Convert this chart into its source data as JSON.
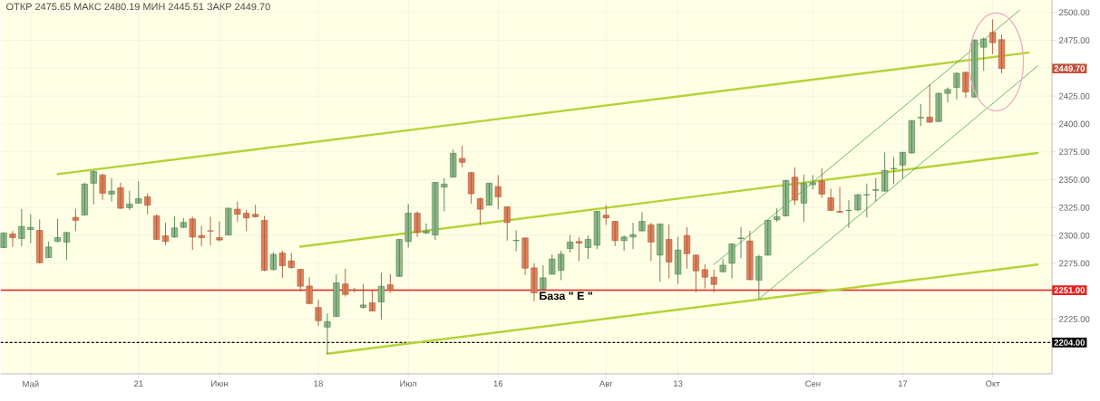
{
  "chart_data": {
    "type": "candlestick",
    "title": "ОТКР 2475.65   МАКС 2480.19   МИН 2445.51   ЗАКР 2449.70",
    "categories": [
      null,
      null,
      null,
      "Май",
      null,
      null,
      null,
      null,
      null,
      null,
      null,
      null,
      null,
      null,
      null,
      "21",
      null,
      null,
      null,
      null,
      null,
      null,
      null,
      null,
      "Июн",
      null,
      null,
      null,
      null,
      null,
      null,
      null,
      null,
      null,
      null,
      "18",
      null,
      null,
      null,
      null,
      null,
      null,
      null,
      null,
      null,
      "Июл",
      null,
      null,
      null,
      null,
      null,
      null,
      null,
      null,
      null,
      "16",
      null,
      null,
      null,
      null,
      null,
      null,
      null,
      null,
      null,
      null,
      null,
      "Авг",
      null,
      null,
      null,
      null,
      null,
      null,
      null,
      "13",
      null,
      null,
      null,
      null,
      null,
      null,
      null,
      null,
      null,
      null,
      null,
      null,
      null,
      null,
      "Сен",
      null,
      null,
      null,
      null,
      null,
      null,
      null,
      null,
      null,
      "17",
      null,
      null,
      null,
      null,
      null,
      null,
      null,
      null,
      null,
      "Окт",
      null,
      null,
      null,
      null,
      null,
      null
    ],
    "ohlc": [
      [
        2289.2,
        2303.0,
        2288.6,
        2302.2
      ],
      [
        2301.4,
        2304.0,
        2289.7,
        2298.1
      ],
      [
        2297.3,
        2323.9,
        2290.5,
        2308.1
      ],
      [
        2305.4,
        2319.0,
        2293.2,
        2307.3
      ],
      [
        2304.6,
        2314.4,
        2275.0,
        2275.6
      ],
      [
        2280.2,
        2294.6,
        2280.0,
        2289.7
      ],
      [
        2294.6,
        2314.9,
        2294.0,
        2298.1
      ],
      [
        2294.1,
        2303.0,
        2278.3,
        2302.7
      ],
      [
        2316.3,
        2323.9,
        2304.0,
        2313.6
      ],
      [
        2318.4,
        2347.4,
        2318.0,
        2346.1
      ],
      [
        2346.9,
        2358.3,
        2327.9,
        2357.5
      ],
      [
        2354.2,
        2355.5,
        2332.0,
        2337.9
      ],
      [
        2337.1,
        2351.5,
        2330.4,
        2339.8
      ],
      [
        2342.8,
        2347.4,
        2324.0,
        2324.4
      ],
      [
        2325.0,
        2340.1,
        2323.0,
        2328.2
      ],
      [
        2329.0,
        2348.8,
        2328.6,
        2333.1
      ],
      [
        2334.7,
        2337.9,
        2319.0,
        2327.1
      ],
      [
        2317.6,
        2319.0,
        2296.0,
        2296.5
      ],
      [
        2299.7,
        2311.4,
        2291.3,
        2294.6
      ],
      [
        2298.6,
        2317.0,
        2298.0,
        2306.8
      ],
      [
        2307.3,
        2315.7,
        2307.0,
        2311.7
      ],
      [
        2314.9,
        2317.0,
        2287.0,
        2298.6
      ],
      [
        2300.0,
        2308.7,
        2290.5,
        2298.1
      ],
      [
        2304.2,
        2316.8,
        2291.3,
        2304.0
      ],
      [
        2298.1,
        2312.7,
        2294.6,
        2296.0
      ],
      [
        2300.5,
        2325.0,
        2300.0,
        2324.4
      ],
      [
        2323.6,
        2330.4,
        2312.2,
        2319.0
      ],
      [
        2320.0,
        2323.0,
        2304.0,
        2315.7
      ],
      [
        2319.0,
        2327.6,
        2316.0,
        2316.8
      ],
      [
        2313.6,
        2317.6,
        2268.0,
        2268.8
      ],
      [
        2269.4,
        2285.1,
        2269.0,
        2283.0
      ],
      [
        2284.3,
        2286.4,
        2262.1,
        2272.9
      ],
      [
        2277.3,
        2284.3,
        2270.2,
        2271.3
      ],
      [
        2269.6,
        2270.0,
        2249.9,
        2254.5
      ],
      [
        2254.7,
        2262.6,
        2238.2,
        2239.0
      ],
      [
        2235.5,
        2242.3,
        2218.7,
        2223.6
      ],
      [
        2217.9,
        2230.1,
        2193.8,
        2222.8
      ],
      [
        2227.4,
        2265.3,
        2227.0,
        2257.5
      ],
      [
        2256.6,
        2270.2,
        2245.3,
        2247.2
      ],
      [
        2251.2,
        2253.0,
        2249.0,
        2251.0
      ],
      [
        2235.5,
        2256.6,
        2234.4,
        2237.7
      ],
      [
        2239.6,
        2251.2,
        2232.0,
        2232.3
      ],
      [
        2240.4,
        2266.7,
        2224.7,
        2254.5
      ],
      [
        2255.8,
        2265.3,
        2248.5,
        2250.7
      ],
      [
        2263.4,
        2297.0,
        2263.0,
        2296.5
      ],
      [
        2294.6,
        2328.2,
        2289.2,
        2320.0
      ],
      [
        2320.0,
        2321.7,
        2298.6,
        2302.7
      ],
      [
        2302.2,
        2310.8,
        2301.4,
        2304.1
      ],
      [
        2300.5,
        2348.0,
        2295.9,
        2347.7
      ],
      [
        2343.4,
        2351.5,
        2321.7,
        2346.1
      ],
      [
        2352.3,
        2377.2,
        2352.0,
        2373.7
      ],
      [
        2369.1,
        2380.5,
        2361.0,
        2365.6
      ],
      [
        2356.4,
        2357.0,
        2328.5,
        2337.4
      ],
      [
        2333.1,
        2334.0,
        2309.5,
        2323.6
      ],
      [
        2327.1,
        2347.0,
        2327.0,
        2346.9
      ],
      [
        2343.9,
        2354.2,
        2323.6,
        2334.7
      ],
      [
        2325.7,
        2326.0,
        2295.4,
        2311.7
      ],
      [
        2295.4,
        2304.6,
        2285.9,
        2295.6
      ],
      [
        2297.8,
        2298.0,
        2264.8,
        2270.7
      ],
      [
        2271.0,
        2275.1,
        2241.2,
        2248.5
      ],
      [
        2251.8,
        2273.4,
        2251.5,
        2262.1
      ],
      [
        2265.3,
        2282.9,
        2265.0,
        2278.9
      ],
      [
        2268.8,
        2286.4,
        2260.0,
        2283.2
      ],
      [
        2288.3,
        2300.5,
        2284.6,
        2294.1
      ],
      [
        2294.6,
        2298.6,
        2277.0,
        2293.2
      ],
      [
        2289.2,
        2300.0,
        2278.9,
        2296.5
      ],
      [
        2291.3,
        2322.0,
        2287.8,
        2321.7
      ],
      [
        2318.2,
        2327.1,
        2309.5,
        2315.7
      ],
      [
        2312.7,
        2313.0,
        2290.5,
        2295.4
      ],
      [
        2295.4,
        2300.0,
        2286.4,
        2298.6
      ],
      [
        2298.6,
        2311.4,
        2287.8,
        2300.8
      ],
      [
        2304.1,
        2320.9,
        2304.0,
        2312.7
      ],
      [
        2309.5,
        2311.4,
        2277.0,
        2294.1
      ],
      [
        2282.4,
        2310.5,
        2258.5,
        2310.3
      ],
      [
        2296.5,
        2310.0,
        2261.5,
        2276.2
      ],
      [
        2265.3,
        2298.6,
        2256.6,
        2287.0
      ],
      [
        2300.0,
        2307.6,
        2270.2,
        2283.7
      ],
      [
        2282.4,
        2283.0,
        2249.0,
        2268.3
      ],
      [
        2269.4,
        2274.3,
        2252.6,
        2262.6
      ],
      [
        2262.6,
        2269.4,
        2249.0,
        2256.1
      ],
      [
        2267.5,
        2278.9,
        2267.0,
        2273.4
      ],
      [
        2275.1,
        2293.0,
        2261.5,
        2292.4
      ],
      [
        2297.3,
        2307.6,
        2279.7,
        2297.8
      ],
      [
        2295.1,
        2304.1,
        2259.9,
        2260.4
      ],
      [
        2259.9,
        2282.9,
        2243.6,
        2281.0
      ],
      [
        2282.4,
        2314.0,
        2282.0,
        2313.6
      ],
      [
        2314.1,
        2324.4,
        2312.2,
        2316.8
      ],
      [
        2317.6,
        2350.0,
        2317.0,
        2349.3
      ],
      [
        2352.3,
        2361.0,
        2327.1,
        2331.7
      ],
      [
        2329.0,
        2354.7,
        2312.2,
        2346.6
      ],
      [
        2345.5,
        2354.2,
        2341.2,
        2347.4
      ],
      [
        2348.8,
        2360.2,
        2333.9,
        2337.1
      ],
      [
        2333.9,
        2342.0,
        2322.0,
        2322.5
      ],
      [
        2321.7,
        2343.4,
        2320.5,
        2320.9
      ],
      [
        2322.3,
        2331.7,
        2306.8,
        2322.6
      ],
      [
        2323.0,
        2337.0,
        2321.7,
        2336.6
      ],
      [
        2336.4,
        2346.6,
        2316.3,
        2336.6
      ],
      [
        2340.5,
        2351.5,
        2330.4,
        2341.0
      ],
      [
        2339.8,
        2374.5,
        2339.5,
        2358.3
      ],
      [
        2359.8,
        2370.5,
        2346.1,
        2360.2
      ],
      [
        2363.1,
        2375.0,
        2351.5,
        2374.5
      ],
      [
        2374.0,
        2403.5,
        2373.5,
        2403.0
      ],
      [
        2405.5,
        2417.9,
        2398.1,
        2405.8
      ],
      [
        2406.2,
        2435.5,
        2401.0,
        2401.6
      ],
      [
        2402.2,
        2428.0,
        2401.8,
        2427.4
      ],
      [
        2427.4,
        2432.8,
        2419.2,
        2430.9
      ],
      [
        2432.8,
        2446.0,
        2422.0,
        2445.5
      ],
      [
        2446.3,
        2447.0,
        2423.3,
        2428.7
      ],
      [
        2424.1,
        2475.8,
        2423.6,
        2475.3
      ],
      [
        2468.8,
        2477.5,
        2447.7,
        2476.2
      ],
      [
        2482.1,
        2493.8,
        2462.6,
        2472.9
      ],
      [
        2475.65,
        2480.19,
        2445.51,
        2449.7
      ],
      null,
      null,
      null,
      null,
      null
    ],
    "series": [
      {
        "type": "line",
        "color": "#b5d334",
        "values": [
          null,
          null,
          null,
          null,
          null,
          null,
          2355,
          null,
          null,
          null,
          null,
          null,
          null,
          null,
          null,
          null,
          null,
          null,
          null,
          null,
          null,
          null,
          null,
          null,
          null,
          null,
          null,
          null,
          null,
          null,
          null,
          null,
          null,
          null,
          null,
          null,
          null,
          null,
          null,
          null,
          null,
          null,
          null,
          null,
          null,
          null,
          null,
          null,
          null,
          null,
          null,
          null,
          null,
          null,
          null,
          null,
          null,
          null,
          null,
          null,
          null,
          null,
          null,
          null,
          null,
          null,
          null,
          null,
          null,
          null,
          null,
          null,
          null,
          null,
          null,
          null,
          null,
          null,
          null,
          null,
          null,
          null,
          null,
          null,
          null,
          null,
          null,
          null,
          null,
          null,
          null,
          null,
          null,
          null,
          null,
          null,
          null,
          null,
          null,
          null,
          null,
          null,
          null,
          null,
          null,
          null,
          null,
          null,
          null,
          null,
          null,
          null,
          null,
          null,
          2464,
          null,
          null
        ]
      },
      {
        "type": "line",
        "color": "#b5d334",
        "values": [
          null,
          null,
          null,
          null,
          null,
          null,
          null,
          null,
          null,
          null,
          null,
          null,
          null,
          null,
          null,
          null,
          null,
          null,
          null,
          null,
          null,
          null,
          null,
          null,
          null,
          null,
          null,
          null,
          null,
          null,
          null,
          null,
          null,
          2290,
          null,
          null,
          null,
          null,
          null,
          null,
          null,
          null,
          null,
          null,
          null,
          null,
          null,
          null,
          null,
          null,
          null,
          null,
          null,
          null,
          null,
          null,
          null,
          null,
          null,
          null,
          null,
          null,
          null,
          null,
          null,
          null,
          null,
          null,
          null,
          null,
          null,
          null,
          null,
          null,
          null,
          null,
          null,
          null,
          null,
          null,
          null,
          null,
          null,
          null,
          null,
          null,
          null,
          null,
          null,
          null,
          null,
          null,
          null,
          null,
          null,
          null,
          null,
          null,
          null,
          null,
          null,
          null,
          null,
          null,
          null,
          null,
          null,
          null,
          null,
          null,
          null,
          null,
          null,
          null,
          null,
          2374,
          null
        ]
      },
      {
        "type": "line",
        "color": "#b5d334",
        "values": [
          null,
          null,
          null,
          null,
          null,
          null,
          null,
          null,
          null,
          null,
          null,
          null,
          null,
          null,
          null,
          null,
          null,
          null,
          null,
          null,
          null,
          null,
          null,
          null,
          null,
          null,
          null,
          null,
          null,
          null,
          null,
          null,
          null,
          null,
          null,
          null,
          2194,
          null,
          null,
          null,
          null,
          null,
          null,
          null,
          null,
          null,
          null,
          null,
          null,
          null,
          null,
          null,
          null,
          null,
          null,
          null,
          null,
          null,
          null,
          null,
          null,
          null,
          null,
          null,
          null,
          null,
          null,
          null,
          null,
          null,
          null,
          null,
          null,
          null,
          null,
          null,
          null,
          null,
          null,
          null,
          null,
          null,
          null,
          null,
          null,
          null,
          null,
          null,
          null,
          null,
          null,
          null,
          null,
          null,
          null,
          null,
          null,
          null,
          null,
          null,
          null,
          null,
          null,
          null,
          null,
          null,
          null,
          null,
          null,
          null,
          null,
          null,
          null,
          null,
          null,
          2274,
          null
        ]
      },
      {
        "type": "line",
        "color": "#2e9b3a",
        "values": [
          null,
          null,
          null,
          null,
          null,
          null,
          null,
          null,
          null,
          null,
          null,
          null,
          null,
          null,
          null,
          null,
          null,
          null,
          null,
          null,
          null,
          null,
          null,
          null,
          null,
          null,
          null,
          null,
          null,
          null,
          null,
          null,
          null,
          null,
          null,
          null,
          null,
          null,
          null,
          null,
          null,
          null,
          null,
          null,
          null,
          null,
          null,
          null,
          null,
          null,
          null,
          null,
          null,
          null,
          null,
          null,
          null,
          null,
          null,
          null,
          null,
          null,
          null,
          null,
          null,
          null,
          null,
          null,
          null,
          null,
          null,
          null,
          null,
          null,
          null,
          null,
          null,
          null,
          null,
          2274,
          null,
          null,
          null,
          null,
          null,
          null,
          null,
          null,
          null,
          null,
          null,
          null,
          null,
          null,
          null,
          null,
          null,
          null,
          null,
          null,
          null,
          null,
          null,
          null,
          null,
          null,
          null,
          null,
          null,
          null,
          null,
          null,
          null,
          2502,
          null,
          null,
          null
        ]
      },
      {
        "type": "line",
        "color": "#2e9b3a",
        "values": [
          null,
          null,
          null,
          null,
          null,
          null,
          null,
          null,
          null,
          null,
          null,
          null,
          null,
          null,
          null,
          null,
          null,
          null,
          null,
          null,
          null,
          null,
          null,
          null,
          null,
          null,
          null,
          null,
          null,
          null,
          null,
          null,
          null,
          null,
          null,
          null,
          null,
          null,
          null,
          null,
          null,
          null,
          null,
          null,
          null,
          null,
          null,
          null,
          null,
          null,
          null,
          null,
          null,
          null,
          null,
          null,
          null,
          null,
          null,
          null,
          null,
          null,
          null,
          null,
          null,
          null,
          null,
          null,
          null,
          null,
          null,
          null,
          null,
          null,
          null,
          null,
          null,
          null,
          null,
          null,
          null,
          null,
          null,
          null,
          2243,
          null,
          null,
          null,
          null,
          null,
          null,
          null,
          null,
          null,
          null,
          null,
          null,
          null,
          null,
          null,
          null,
          null,
          null,
          null,
          null,
          null,
          null,
          null,
          null,
          null,
          null,
          null,
          null,
          null,
          null,
          2452,
          null
        ]
      }
    ],
    "ylim": [
      2176,
      2511
    ],
    "yticks": [
      {
        "value": 2225,
        "label": "2225.00"
      },
      {
        "value": 2250,
        "label": null
      },
      {
        "value": 2275,
        "label": "2275.00"
      },
      {
        "value": 2300,
        "label": "2300.00"
      },
      {
        "value": 2325,
        "label": "2325.00"
      },
      {
        "value": 2350,
        "label": "2350.00"
      },
      {
        "value": 2375,
        "label": "2375.00"
      },
      {
        "value": 2400,
        "label": "2400.00"
      },
      {
        "value": 2425,
        "label": "2425.00"
      },
      {
        "value": 2450,
        "label": null
      },
      {
        "value": 2475,
        "label": "2475.00"
      },
      {
        "value": 2500,
        "label": "2500.00"
      }
    ],
    "ref_lines": [
      {
        "axis": "y",
        "value": 2251,
        "label": "2251.00",
        "color": "#e82020",
        "line_style": "solid"
      },
      {
        "axis": "y",
        "value": 2204,
        "label": "2204.00",
        "color": "#000000",
        "line_style": "dashed"
      }
    ],
    "annotations": [
      "База \" Е \"",
      "2449.70"
    ],
    "grid": true,
    "marker": "none"
  }
}
